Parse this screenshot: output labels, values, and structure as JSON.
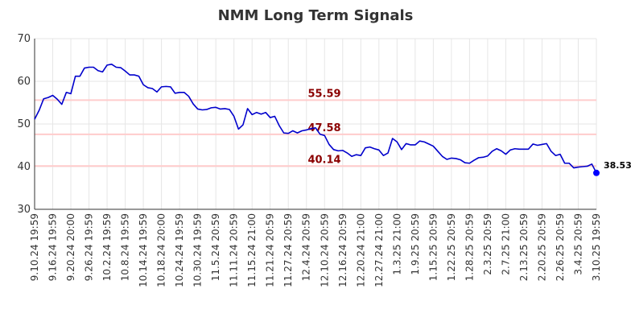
{
  "chart_data": {
    "type": "line",
    "title": "NMM Long Term Signals",
    "ylim": [
      30,
      70
    ],
    "yticks": [
      30,
      40,
      50,
      60,
      70
    ],
    "grid": true,
    "colors": {
      "line": "#0000cc",
      "ref_line": "#ffcccc",
      "ref_text": "#8b0000",
      "grid": "#e6e6e6",
      "last_point": "#0000ff"
    },
    "x_tick_labels": [
      "9.10.24 19:59",
      "9.16.24 19:59",
      "9.20.24 20:00",
      "9.26.24 19:59",
      "10.2.24 19:59",
      "10.8.24 19:59",
      "10.14.24 19:59",
      "10.18.24 20:00",
      "10.24.24 19:59",
      "10.30.24 19:59",
      "11.5.24 20:59",
      "11.11.24 20:59",
      "11.15.24 21:00",
      "11.21.24 20:59",
      "11.27.24 20:59",
      "12.4.24 20:59",
      "12.10.24 20:59",
      "12.16.24 20:59",
      "12.20.24 21:00",
      "12.27.24 21:00",
      "1.3.25 21:00",
      "1.9.25 20:59",
      "1.15.25 20:59",
      "1.22.25 20:59",
      "1.28.25 20:59",
      "2.3.25 20:59",
      "2.7.25 21:00",
      "2.13.25 20:59",
      "2.20.25 20:59",
      "2.26.25 20:59",
      "3.4.25 20:59",
      "3.10.25 19:59"
    ],
    "values": [
      51.1,
      53.2,
      55.9,
      56.2,
      56.7,
      55.8,
      54.6,
      57.4,
      57.1,
      61.2,
      61.2,
      63.1,
      63.3,
      63.3,
      62.5,
      62.2,
      63.8,
      64.0,
      63.3,
      63.2,
      62.4,
      61.5,
      61.5,
      61.2,
      59.2,
      58.5,
      58.3,
      57.5,
      58.7,
      58.8,
      58.7,
      57.2,
      57.4,
      57.4,
      56.5,
      54.7,
      53.5,
      53.3,
      53.4,
      53.8,
      53.9,
      53.5,
      53.6,
      53.4,
      51.8,
      48.8,
      49.8,
      53.6,
      52.2,
      52.7,
      52.3,
      52.7,
      51.5,
      51.8,
      49.6,
      47.9,
      47.8,
      48.4,
      47.9,
      48.4,
      48.6,
      48.9,
      49.1,
      47.6,
      47.3,
      45.2,
      44.0,
      43.7,
      43.8,
      43.2,
      42.4,
      42.8,
      42.6,
      44.4,
      44.6,
      44.2,
      43.9,
      42.6,
      43.2,
      46.6,
      45.8,
      44.0,
      45.4,
      45.1,
      45.1,
      46.0,
      45.8,
      45.3,
      44.8,
      43.6,
      42.4,
      41.7,
      42.0,
      41.9,
      41.6,
      40.9,
      40.8,
      41.5,
      42.1,
      42.2,
      42.5,
      43.6,
      44.2,
      43.7,
      42.9,
      43.9,
      44.2,
      44.1,
      44.1,
      44.1,
      45.3,
      45.0,
      45.2,
      45.4,
      43.6,
      42.6,
      42.9,
      40.8,
      40.8,
      39.7,
      39.9,
      40.0,
      40.1,
      40.6,
      38.53
    ],
    "reference_lines": [
      {
        "value": 55.59,
        "label": "55.59"
      },
      {
        "value": 47.58,
        "label": "47.58"
      },
      {
        "value": 40.14,
        "label": "40.14"
      }
    ],
    "last_value_label": "38.53"
  }
}
